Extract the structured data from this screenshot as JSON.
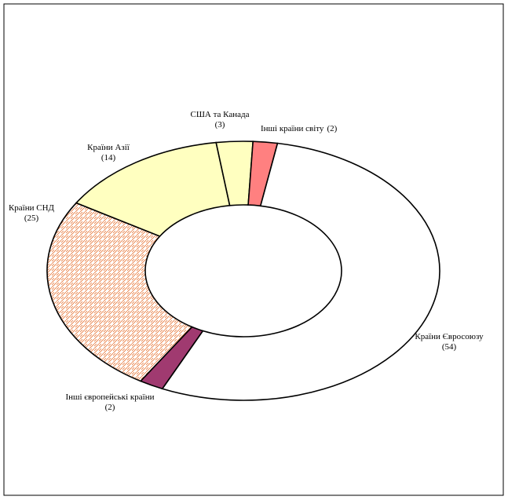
{
  "chart_data": {
    "type": "donut",
    "categories": [
      "Країни Євросоюзу",
      "Інші європейські країни",
      "Країни СНД",
      "Країни Азії",
      "США та Канада",
      "Інші країни світу"
    ],
    "values": [
      54,
      2,
      25,
      14,
      3,
      2
    ],
    "value_labels": [
      "(54)",
      "(2)",
      "(25)",
      "(14)",
      "(3)",
      "(2)"
    ],
    "colors": [
      "#ffffff",
      "#a03a70",
      "#e8783a",
      "#ffffc0",
      "#ffffc0",
      "#ff8080"
    ]
  }
}
